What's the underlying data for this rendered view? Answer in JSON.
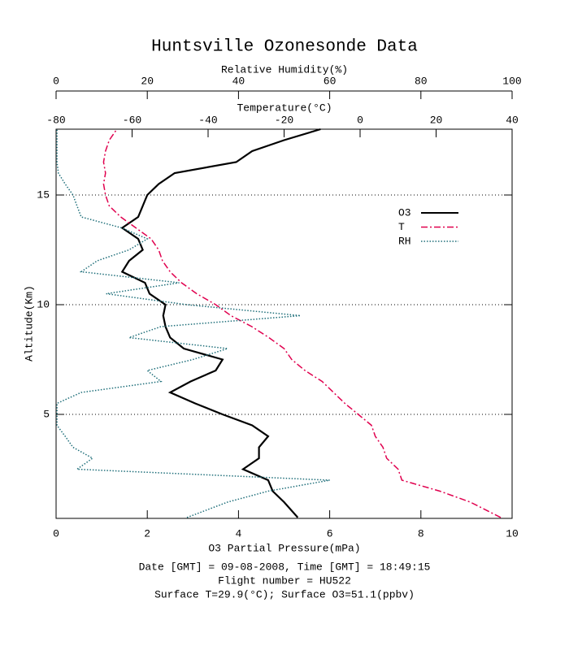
{
  "chart_data": {
    "type": "line",
    "title": "Huntsville Ozonesonde Data",
    "ylabel": "Altitude(Km)",
    "ylim": [
      0.26,
      18
    ],
    "yticks": [
      5,
      10,
      15
    ],
    "grid": true,
    "xlabel": "O3 Partial Pressure(mPa)",
    "xlim": [
      0,
      10
    ],
    "xticks": [
      0,
      2,
      4,
      6,
      8,
      10
    ],
    "temperature_axis": {
      "label": "Temperature(°C)",
      "lim": [
        -80,
        40
      ],
      "ticks": [
        -80,
        -60,
        -40,
        -20,
        0,
        20,
        40
      ]
    },
    "rh_axis": {
      "label": "Relative Humidity(%)",
      "lim": [
        0,
        100
      ],
      "ticks": [
        0,
        20,
        40,
        60,
        80,
        100
      ]
    },
    "altitude": [
      0.3,
      1,
      1.5,
      2,
      2.5,
      3,
      3.5,
      4,
      4.5,
      5,
      5.5,
      6,
      6.5,
      7,
      7.5,
      8,
      8.5,
      9,
      9.5,
      10,
      10.5,
      11,
      11.5,
      12,
      12.5,
      13,
      13.5,
      14,
      14.5,
      15,
      15.5,
      16,
      16.5,
      17,
      17.5,
      18
    ],
    "series": [
      {
        "name": "O3",
        "color": "#000000",
        "axis": "x",
        "style": "solid",
        "values": [
          5.3,
          5.0,
          4.75,
          4.65,
          4.1,
          4.45,
          4.45,
          4.65,
          4.3,
          3.65,
          3.05,
          2.5,
          2.95,
          3.5,
          3.65,
          2.8,
          2.5,
          2.4,
          2.35,
          2.4,
          2.05,
          1.95,
          1.45,
          1.6,
          1.9,
          1.8,
          1.45,
          1.8,
          1.9,
          2.0,
          2.25,
          2.6,
          3.95,
          4.3,
          5.0,
          5.8
        ]
      },
      {
        "name": "T",
        "color": "#e0004e",
        "axis": "temperature",
        "style": "dashdot",
        "values": [
          37,
          29,
          21,
          11,
          10,
          7,
          6,
          4,
          3,
          -0.5,
          -4,
          -7,
          -10,
          -14.5,
          -18,
          -20,
          -24,
          -28.5,
          -34,
          -38,
          -43,
          -47,
          -50,
          -52,
          -53,
          -55,
          -59,
          -63,
          -66,
          -67,
          -67.5,
          -67,
          -67.5,
          -67,
          -66,
          -64
        ]
      },
      {
        "name": "RH",
        "color": "#1f6f7a",
        "axis": "rh",
        "style": "dotted",
        "values": [
          28.7,
          37.6,
          46.5,
          60,
          4.6,
          8,
          3.7,
          2,
          0.2,
          0.2,
          0.2,
          5.5,
          23,
          20,
          30,
          37.6,
          16,
          23,
          53.6,
          28.7,
          11,
          27,
          5.5,
          9,
          16,
          20,
          14.4,
          5.5,
          4.6,
          3.7,
          2,
          0.5,
          0.2,
          0.2,
          0.2,
          0.2
        ]
      }
    ],
    "footer": [
      "Date [GMT] = 09-08-2008,  Time [GMT] = 18:49:15",
      "Flight number = HU522",
      "Surface T=29.9(°C); Surface O3=51.1(ppbv)"
    ]
  }
}
